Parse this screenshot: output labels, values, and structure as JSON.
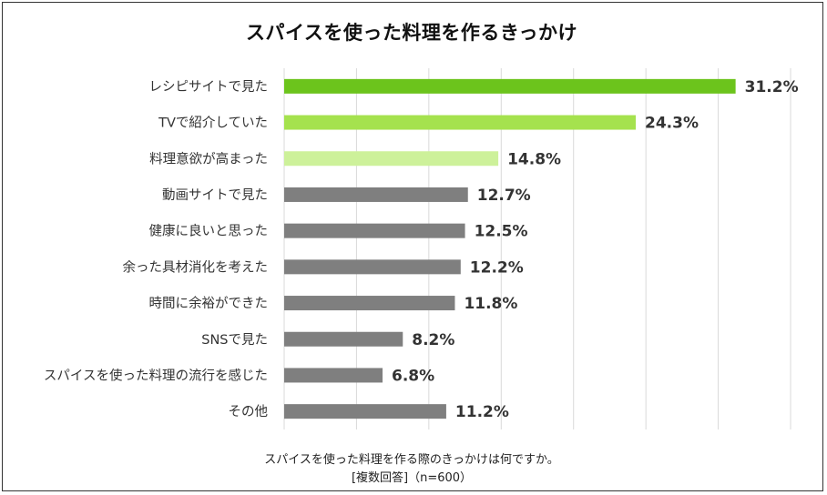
{
  "chart_data": {
    "type": "bar",
    "orientation": "horizontal",
    "title": "スパイスを使った料理を作るきっかけ",
    "categories": [
      "レシピサイトで見た",
      "TVで紹介していた",
      "料理意欲が高まった",
      "動画サイトで見た",
      "健康に良いと思った",
      "余った具材消化を考えた",
      "時間に余裕ができた",
      "SNSで見た",
      "スパイスを使った料理の流行を感じた",
      "その他"
    ],
    "values": [
      31.2,
      24.3,
      14.8,
      12.7,
      12.5,
      12.2,
      11.8,
      8.2,
      6.8,
      11.2
    ],
    "value_labels": [
      "31.2%",
      "24.3%",
      "14.8%",
      "12.7%",
      "12.5%",
      "12.2%",
      "11.8%",
      "8.2%",
      "6.8%",
      "11.2%"
    ],
    "bar_colors": [
      "#6cc41c",
      "#a5e24e",
      "#cdf19a",
      "#7f7f7f",
      "#7f7f7f",
      "#7f7f7f",
      "#7f7f7f",
      "#7f7f7f",
      "#7f7f7f",
      "#7f7f7f"
    ],
    "xlim": [
      0,
      35
    ],
    "grid": true
  },
  "footnote": {
    "question": "スパイスを使った料理を作る際のきっかけは何ですか。",
    "sample": "[複数回答]（n=600）"
  }
}
